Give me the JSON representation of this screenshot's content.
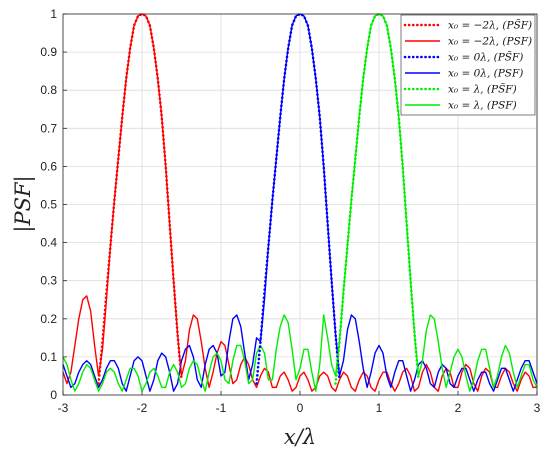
{
  "chart_data": {
    "type": "line",
    "title": "",
    "xlabel": "x/λ",
    "ylabel": "|PSF|",
    "xlim": [
      -3,
      3
    ],
    "ylim": [
      0,
      1
    ],
    "xticks": [
      -3,
      -2,
      -1,
      0,
      1,
      2,
      3
    ],
    "yticks": [
      0,
      0.1,
      0.2,
      0.3,
      0.4,
      0.5,
      0.6,
      0.7,
      0.8,
      0.9,
      1
    ],
    "xtick_labels": [
      "-3",
      "-2",
      "-1",
      "0",
      "1",
      "2",
      "3"
    ],
    "ytick_labels": [
      "0",
      "0.1",
      "0.2",
      "0.3",
      "0.4",
      "0.5",
      "0.6",
      "0.7",
      "0.8",
      "0.9",
      "1"
    ],
    "grid": true,
    "legend_position": "top-right",
    "series": [
      {
        "name": "x₀ = −2λ, (PS̃F)",
        "color": "#ff0000",
        "style": "dotted",
        "x": [
          -2.55,
          -2.5,
          -2.45,
          -2.4,
          -2.35,
          -2.3,
          -2.25,
          -2.2,
          -2.15,
          -2.1,
          -2.05,
          -2.0,
          -1.95,
          -1.9,
          -1.85,
          -1.8,
          -1.75,
          -1.7,
          -1.65,
          -1.6,
          -1.55,
          -1.5
        ],
        "y": [
          0.03,
          0.14,
          0.27,
          0.39,
          0.51,
          0.62,
          0.73,
          0.83,
          0.91,
          0.97,
          0.995,
          1.0,
          0.995,
          0.97,
          0.91,
          0.83,
          0.73,
          0.6,
          0.45,
          0.3,
          0.16,
          0.04
        ]
      },
      {
        "name": "x₀ = −2λ, (PSF)",
        "color": "#ff0000",
        "style": "solid",
        "x": [
          -3.0,
          -2.95,
          -2.9,
          -2.85,
          -2.8,
          -2.75,
          -2.7,
          -2.65,
          -2.6,
          -2.55,
          -2.5,
          -2.45,
          -2.4,
          -2.35,
          -2.3,
          -2.25,
          -2.2,
          -2.15,
          -2.1,
          -2.05,
          -2.0,
          -1.95,
          -1.9,
          -1.85,
          -1.8,
          -1.75,
          -1.7,
          -1.65,
          -1.6,
          -1.55,
          -1.5,
          -1.45,
          -1.4,
          -1.35,
          -1.3,
          -1.25,
          -1.2,
          -1.15,
          -1.1,
          -1.05,
          -1.0,
          -0.95,
          -0.9,
          -0.85,
          -0.8,
          -0.75,
          -0.7,
          -0.65,
          -0.6,
          -0.55,
          -0.5,
          -0.45,
          -0.4,
          -0.35,
          -0.3,
          -0.25,
          -0.2,
          -0.15,
          -0.1,
          -0.05,
          0.0,
          0.05,
          0.1,
          0.15,
          0.2,
          0.25,
          0.3,
          0.35,
          0.4,
          0.45,
          0.5,
          0.55,
          0.6,
          0.65,
          0.7,
          0.75,
          0.8,
          0.85,
          0.9,
          0.95,
          1.0,
          1.05,
          1.1,
          1.15,
          1.2,
          1.25,
          1.3,
          1.35,
          1.4,
          1.45,
          1.5,
          1.55,
          1.6,
          1.65,
          1.7,
          1.75,
          1.8,
          1.85,
          1.9,
          1.95,
          2.0,
          2.05,
          2.1,
          2.15,
          2.2,
          2.25,
          2.3,
          2.35,
          2.4,
          2.45,
          2.5,
          2.55,
          2.6,
          2.65,
          2.7,
          2.75,
          2.8,
          2.85,
          2.9,
          2.95,
          3.0
        ],
        "y": [
          0.06,
          0.03,
          0.06,
          0.13,
          0.2,
          0.25,
          0.26,
          0.22,
          0.13,
          0.05,
          0.12,
          0.25,
          0.39,
          0.51,
          0.62,
          0.73,
          0.83,
          0.91,
          0.97,
          0.995,
          1.0,
          0.995,
          0.97,
          0.91,
          0.83,
          0.73,
          0.6,
          0.45,
          0.3,
          0.16,
          0.05,
          0.09,
          0.17,
          0.21,
          0.2,
          0.14,
          0.07,
          0.02,
          0.06,
          0.11,
          0.14,
          0.13,
          0.08,
          0.03,
          0.04,
          0.08,
          0.1,
          0.08,
          0.04,
          0.02,
          0.05,
          0.07,
          0.06,
          0.02,
          0.02,
          0.05,
          0.06,
          0.04,
          0.01,
          0.02,
          0.05,
          0.06,
          0.04,
          0.01,
          0.02,
          0.05,
          0.06,
          0.05,
          0.02,
          0.01,
          0.04,
          0.06,
          0.05,
          0.02,
          0.01,
          0.04,
          0.06,
          0.05,
          0.02,
          0.01,
          0.04,
          0.06,
          0.06,
          0.03,
          0.01,
          0.03,
          0.06,
          0.07,
          0.05,
          0.01,
          0.02,
          0.06,
          0.08,
          0.06,
          0.02,
          0.01,
          0.05,
          0.07,
          0.06,
          0.02,
          0.02,
          0.06,
          0.08,
          0.07,
          0.03,
          0.01,
          0.05,
          0.07,
          0.06,
          0.02,
          0.02,
          0.05,
          0.07,
          0.06,
          0.03,
          0.01,
          0.04,
          0.06,
          0.05,
          0.02,
          0.02
        ]
      },
      {
        "name": "x₀ = 0λ, (PS̃F)",
        "color": "#0000ff",
        "style": "dotted",
        "x": [
          -0.55,
          -0.5,
          -0.45,
          -0.4,
          -0.35,
          -0.3,
          -0.25,
          -0.2,
          -0.15,
          -0.1,
          -0.05,
          0.0,
          0.05,
          0.1,
          0.15,
          0.2,
          0.25,
          0.3,
          0.35,
          0.4,
          0.45,
          0.5
        ],
        "y": [
          0.03,
          0.14,
          0.27,
          0.39,
          0.51,
          0.62,
          0.73,
          0.83,
          0.91,
          0.97,
          0.995,
          1.0,
          0.995,
          0.97,
          0.91,
          0.83,
          0.73,
          0.6,
          0.45,
          0.3,
          0.16,
          0.04
        ]
      },
      {
        "name": "x₀ = 0λ, (PSF)",
        "color": "#0000ff",
        "style": "solid",
        "x": [
          -3.0,
          -2.95,
          -2.9,
          -2.85,
          -2.8,
          -2.75,
          -2.7,
          -2.65,
          -2.6,
          -2.55,
          -2.5,
          -2.45,
          -2.4,
          -2.35,
          -2.3,
          -2.25,
          -2.2,
          -2.15,
          -2.1,
          -2.05,
          -2.0,
          -1.95,
          -1.9,
          -1.85,
          -1.8,
          -1.75,
          -1.7,
          -1.65,
          -1.6,
          -1.55,
          -1.5,
          -1.45,
          -1.4,
          -1.35,
          -1.3,
          -1.25,
          -1.2,
          -1.15,
          -1.1,
          -1.05,
          -1.0,
          -0.95,
          -0.9,
          -0.85,
          -0.8,
          -0.75,
          -0.7,
          -0.65,
          -0.6,
          -0.55,
          -0.5,
          -0.45,
          -0.4,
          -0.35,
          -0.3,
          -0.25,
          -0.2,
          -0.15,
          -0.1,
          -0.05,
          0.0,
          0.05,
          0.1,
          0.15,
          0.2,
          0.25,
          0.3,
          0.35,
          0.4,
          0.45,
          0.5,
          0.55,
          0.6,
          0.65,
          0.7,
          0.75,
          0.8,
          0.85,
          0.9,
          0.95,
          1.0,
          1.05,
          1.1,
          1.15,
          1.2,
          1.25,
          1.3,
          1.35,
          1.4,
          1.45,
          1.5,
          1.55,
          1.6,
          1.65,
          1.7,
          1.75,
          1.8,
          1.85,
          1.9,
          1.95,
          2.0,
          2.05,
          2.1,
          2.15,
          2.2,
          2.25,
          2.3,
          2.35,
          2.4,
          2.45,
          2.5,
          2.55,
          2.6,
          2.65,
          2.7,
          2.75,
          2.8,
          2.85,
          2.9,
          2.95,
          3.0
        ],
        "y": [
          0.08,
          0.05,
          0.02,
          0.03,
          0.06,
          0.08,
          0.09,
          0.08,
          0.05,
          0.02,
          0.04,
          0.07,
          0.09,
          0.09,
          0.07,
          0.03,
          0.01,
          0.05,
          0.09,
          0.1,
          0.09,
          0.05,
          0.01,
          0.04,
          0.09,
          0.11,
          0.1,
          0.06,
          0.01,
          0.03,
          0.09,
          0.12,
          0.13,
          0.1,
          0.04,
          0.02,
          0.08,
          0.12,
          0.13,
          0.11,
          0.05,
          0.06,
          0.14,
          0.2,
          0.21,
          0.18,
          0.11,
          0.04,
          0.08,
          0.15,
          0.14,
          0.25,
          0.39,
          0.51,
          0.62,
          0.73,
          0.83,
          0.91,
          0.97,
          0.995,
          1.0,
          0.995,
          0.97,
          0.91,
          0.83,
          0.73,
          0.6,
          0.45,
          0.3,
          0.16,
          0.05,
          0.09,
          0.17,
          0.21,
          0.2,
          0.14,
          0.07,
          0.02,
          0.06,
          0.11,
          0.13,
          0.11,
          0.05,
          0.02,
          0.06,
          0.09,
          0.09,
          0.05,
          0.01,
          0.04,
          0.08,
          0.09,
          0.07,
          0.03,
          0.02,
          0.06,
          0.08,
          0.07,
          0.03,
          0.02,
          0.05,
          0.07,
          0.07,
          0.04,
          0.01,
          0.04,
          0.06,
          0.06,
          0.03,
          0.01,
          0.04,
          0.07,
          0.07,
          0.04,
          0.01,
          0.04,
          0.07,
          0.09,
          0.09,
          0.06,
          0.03
        ]
      },
      {
        "name": "x₀ = λ, (PS̃F)",
        "color": "#00ee00",
        "style": "dotted",
        "x": [
          0.45,
          0.5,
          0.55,
          0.6,
          0.65,
          0.7,
          0.75,
          0.8,
          0.85,
          0.9,
          0.95,
          1.0,
          1.05,
          1.1,
          1.15,
          1.2,
          1.25,
          1.3,
          1.35,
          1.4,
          1.45,
          1.5
        ],
        "y": [
          0.03,
          0.14,
          0.27,
          0.39,
          0.51,
          0.62,
          0.73,
          0.83,
          0.91,
          0.97,
          0.995,
          1.0,
          0.995,
          0.97,
          0.91,
          0.83,
          0.73,
          0.6,
          0.45,
          0.3,
          0.16,
          0.04
        ]
      },
      {
        "name": "x₀ = λ, (PSF)",
        "color": "#00ee00",
        "style": "solid",
        "x": [
          -3.0,
          -2.95,
          -2.9,
          -2.85,
          -2.8,
          -2.75,
          -2.7,
          -2.65,
          -2.6,
          -2.55,
          -2.5,
          -2.45,
          -2.4,
          -2.35,
          -2.3,
          -2.25,
          -2.2,
          -2.15,
          -2.1,
          -2.05,
          -2.0,
          -1.95,
          -1.9,
          -1.85,
          -1.8,
          -1.75,
          -1.7,
          -1.65,
          -1.6,
          -1.55,
          -1.5,
          -1.45,
          -1.4,
          -1.35,
          -1.3,
          -1.25,
          -1.2,
          -1.15,
          -1.1,
          -1.05,
          -1.0,
          -0.95,
          -0.9,
          -0.85,
          -0.8,
          -0.75,
          -0.7,
          -0.65,
          -0.6,
          -0.55,
          -0.5,
          -0.45,
          -0.4,
          -0.35,
          -0.3,
          -0.25,
          -0.2,
          -0.15,
          -0.1,
          -0.05,
          0.0,
          0.05,
          0.1,
          0.15,
          0.2,
          0.25,
          0.3,
          0.35,
          0.4,
          0.45,
          0.5,
          0.55,
          0.6,
          0.65,
          0.7,
          0.75,
          0.8,
          0.85,
          0.9,
          0.95,
          1.0,
          1.05,
          1.1,
          1.15,
          1.2,
          1.25,
          1.3,
          1.35,
          1.4,
          1.45,
          1.5,
          1.55,
          1.6,
          1.65,
          1.7,
          1.75,
          1.8,
          1.85,
          1.9,
          1.95,
          2.0,
          2.05,
          2.1,
          2.15,
          2.2,
          2.25,
          2.3,
          2.35,
          2.4,
          2.45,
          2.5,
          2.55,
          2.6,
          2.65,
          2.7,
          2.75,
          2.8,
          2.85,
          2.9,
          2.95,
          3.0
        ],
        "y": [
          0.1,
          0.08,
          0.04,
          0.01,
          0.03,
          0.06,
          0.08,
          0.07,
          0.04,
          0.01,
          0.03,
          0.06,
          0.07,
          0.06,
          0.03,
          0.01,
          0.04,
          0.07,
          0.07,
          0.05,
          0.01,
          0.03,
          0.06,
          0.07,
          0.05,
          0.02,
          0.02,
          0.06,
          0.08,
          0.06,
          0.02,
          0.03,
          0.07,
          0.09,
          0.08,
          0.04,
          0.01,
          0.06,
          0.1,
          0.11,
          0.09,
          0.04,
          0.03,
          0.09,
          0.13,
          0.13,
          0.09,
          0.03,
          0.04,
          0.11,
          0.13,
          0.11,
          0.04,
          0.04,
          0.12,
          0.18,
          0.21,
          0.19,
          0.12,
          0.04,
          0.07,
          0.12,
          0.12,
          0.06,
          0.01,
          0.08,
          0.21,
          0.15,
          0.08,
          0.05,
          0.14,
          0.27,
          0.39,
          0.51,
          0.62,
          0.73,
          0.83,
          0.91,
          0.97,
          0.995,
          1.0,
          0.995,
          0.97,
          0.91,
          0.83,
          0.73,
          0.6,
          0.45,
          0.3,
          0.16,
          0.05,
          0.09,
          0.17,
          0.21,
          0.2,
          0.14,
          0.07,
          0.02,
          0.06,
          0.1,
          0.12,
          0.1,
          0.05,
          0.01,
          0.04,
          0.09,
          0.12,
          0.12,
          0.07,
          0.02,
          0.05,
          0.1,
          0.13,
          0.11,
          0.06,
          0.02,
          0.05,
          0.08,
          0.08,
          0.04,
          0.02
        ]
      }
    ]
  }
}
